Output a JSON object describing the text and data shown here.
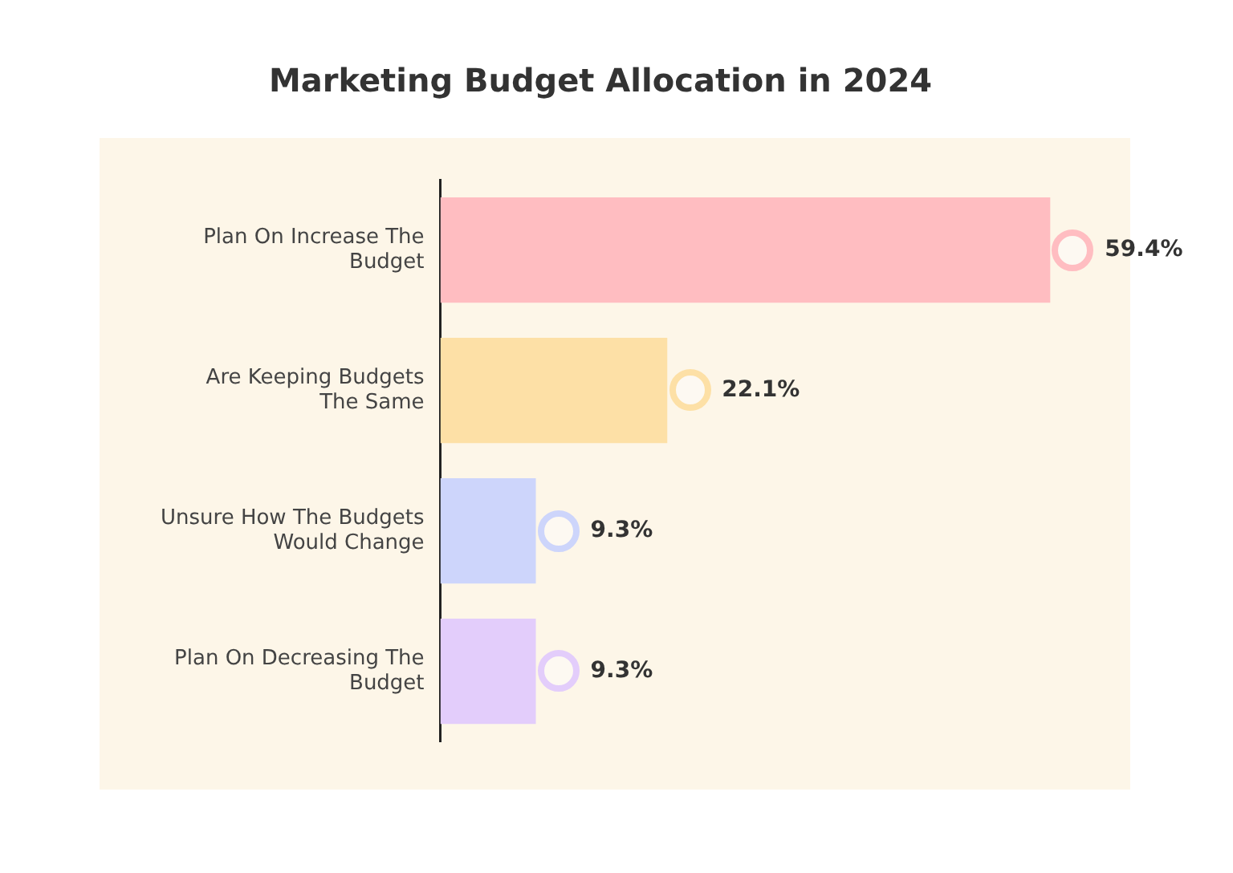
{
  "chart_data": {
    "type": "bar",
    "orientation": "horizontal",
    "title": "Marketing Budget Allocation in 2024",
    "categories": [
      "Plan On Increase The Budget",
      "Are Keeping Budgets The Same",
      "Unsure How The Budgets Would Change",
      "Plan On Decreasing The Budget"
    ],
    "values": [
      59.4,
      22.1,
      9.3,
      9.3
    ],
    "colors": [
      "#ffbdc1",
      "#fde0a6",
      "#cdd5fb",
      "#e3cdfb"
    ],
    "value_labels": [
      "59.4%",
      "22.1%",
      "9.3%",
      "9.3%"
    ],
    "tick_labels": "y",
    "grid": false,
    "legend": false
  }
}
